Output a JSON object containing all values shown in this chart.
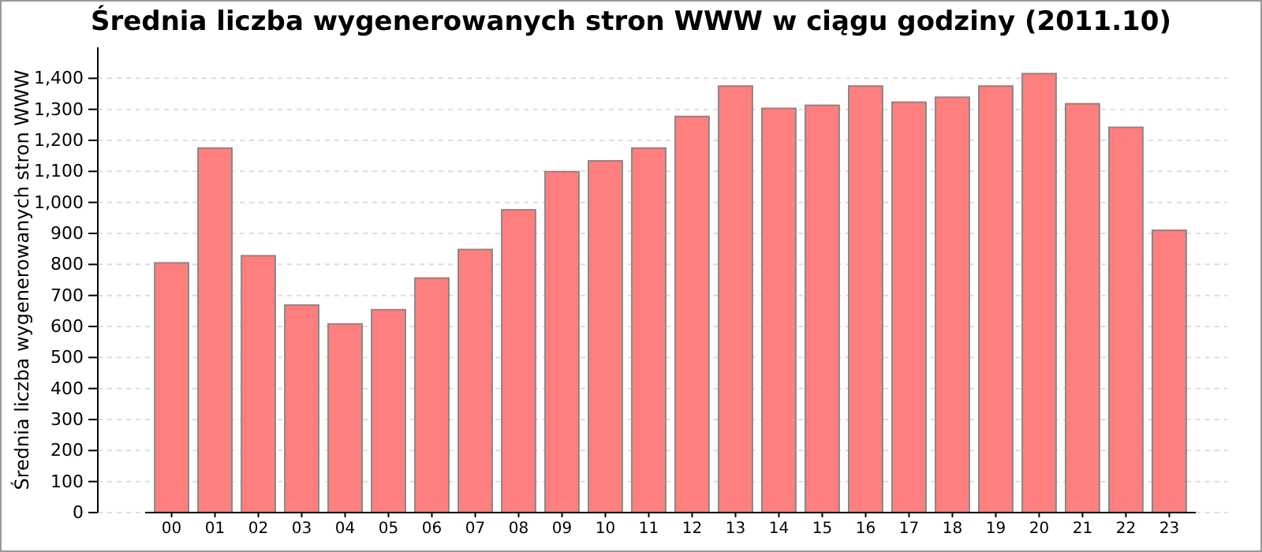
{
  "chart_data": {
    "type": "bar",
    "title": "Średnia liczba wygenerowanych stron WWW w ciągu godziny (2011.10)",
    "ylabel": "Średnia liczba wygenerowanych stron WWW",
    "categories": [
      "00",
      "01",
      "02",
      "03",
      "04",
      "05",
      "06",
      "07",
      "08",
      "09",
      "10",
      "11",
      "12",
      "13",
      "14",
      "15",
      "16",
      "17",
      "18",
      "19",
      "20",
      "21",
      "22",
      "23"
    ],
    "values": [
      805,
      1175,
      828,
      669,
      608,
      654,
      756,
      848,
      976,
      1099,
      1134,
      1175,
      1277,
      1375,
      1303,
      1313,
      1375,
      1323,
      1339,
      1375,
      1415,
      1318,
      1242,
      910
    ],
    "color": "#ff7f7f",
    "ylim": [
      0,
      1500
    ],
    "yticks": [
      0,
      100,
      200,
      300,
      400,
      500,
      600,
      700,
      800,
      900,
      {
        "value": 1000,
        "label": "1,000"
      },
      {
        "value": 1100,
        "label": "1,100"
      },
      {
        "value": 1200,
        "label": "1,200"
      },
      {
        "value": 1300,
        "label": "1,300"
      },
      {
        "value": 1400,
        "label": "1,400"
      }
    ],
    "grid": "y"
  }
}
